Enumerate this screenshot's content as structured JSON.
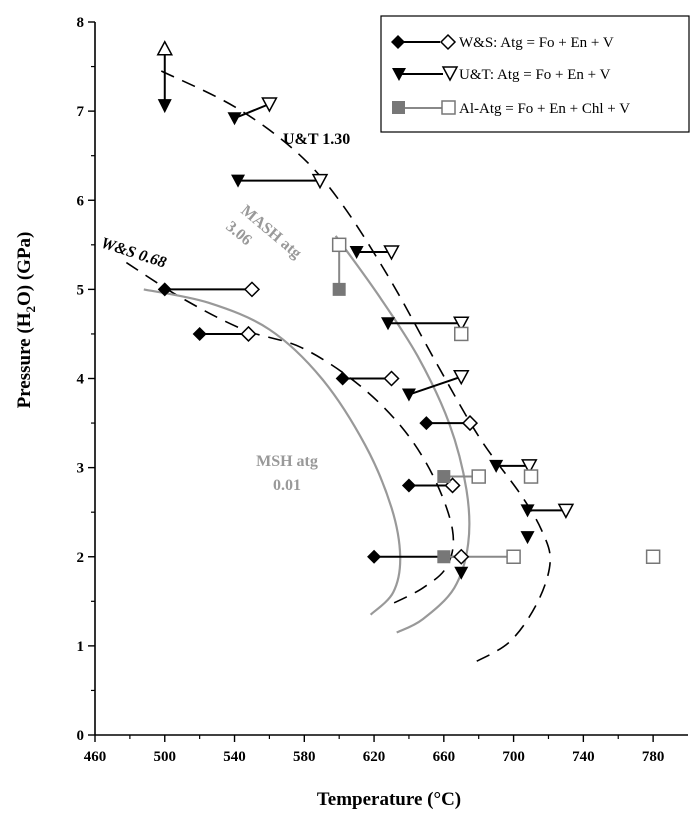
{
  "chart_data": {
    "type": "scatter",
    "xlabel": "Temperature (°C)",
    "ylabel": "Pressure (H2O)  (GPa)",
    "xlim": [
      460,
      800
    ],
    "ylim": [
      0,
      8
    ],
    "x_ticks": [
      "460",
      "500",
      "540",
      "580",
      "620",
      "660",
      "700",
      "740",
      "780"
    ],
    "y_ticks": [
      "0",
      "1",
      "2",
      "3",
      "4",
      "5",
      "6",
      "7",
      "8"
    ],
    "grid": false,
    "legend_position": "top-right",
    "series": [
      {
        "name": "W&S: Atg = Fo + En + V",
        "marker_filled": "diamond",
        "marker_open": "diamond-open",
        "color": "#000000",
        "brackets": [
          {
            "filled": [
              500,
              5.0
            ],
            "open": [
              550,
              5.0
            ]
          },
          {
            "filled": [
              520,
              4.5
            ],
            "open": [
              548,
              4.5
            ]
          },
          {
            "filled": [
              602,
              4.0
            ],
            "open": [
              630,
              4.0
            ]
          },
          {
            "filled": [
              650,
              3.5
            ],
            "open": [
              675,
              3.5
            ]
          },
          {
            "filled": [
              640,
              2.8
            ],
            "open": [
              665,
              2.8
            ]
          },
          {
            "filled": [
              620,
              2.0
            ],
            "open": [
              670,
              2.0
            ]
          }
        ]
      },
      {
        "name": "U&T: Atg = Fo + En + V",
        "marker_filled": "triangle-down",
        "marker_open": "triangle-down-open",
        "color": "#000000",
        "brackets": [
          {
            "filled": [
              540,
              6.92
            ],
            "open": [
              560,
              7.08
            ]
          },
          {
            "filled": [
              542,
              6.22
            ],
            "open": [
              589,
              6.22
            ]
          },
          {
            "filled": [
              610,
              5.42
            ],
            "open": [
              630,
              5.42
            ]
          },
          {
            "filled": [
              628,
              4.62
            ],
            "open": [
              670,
              4.62
            ]
          },
          {
            "filled": [
              640,
              3.82
            ],
            "open": [
              670,
              4.02
            ]
          },
          {
            "filled": [
              690,
              3.02
            ],
            "open": [
              709,
              3.02
            ]
          },
          {
            "filled": [
              708,
              2.52
            ],
            "open": [
              730,
              2.52
            ]
          },
          {
            "filled": [
              708,
              2.22
            ]
          },
          {
            "filled": [
              670,
              1.82
            ]
          }
        ]
      },
      {
        "name": "Al-Atg = Fo + En + Chl + V",
        "marker_filled": "square",
        "marker_open": "square-open",
        "color": "#777777",
        "brackets": [
          {
            "filled": [
              600,
              5.0
            ],
            "open": [
              600,
              5.5
            ]
          },
          {
            "filled": [
              660,
              2.9
            ],
            "open": [
              680,
              2.9
            ]
          },
          {
            "filled": [
              660,
              2.0
            ],
            "open": [
              700,
              2.0
            ]
          },
          {
            "open": [
              670,
              4.5
            ]
          },
          {
            "open": [
              710,
              2.9
            ]
          },
          {
            "open": [
              780,
              2.0
            ]
          }
        ]
      }
    ],
    "arrow_marker": {
      "open_triangle_up": [
        500,
        7.7
      ],
      "arrow_down_to": [
        500,
        7.0
      ]
    },
    "curves": [
      {
        "label": "U&T 1.30",
        "style": "dashed",
        "color": "#000000"
      },
      {
        "label": "W&S 0.68",
        "style": "dashed",
        "color": "#000000"
      },
      {
        "label": "MASH atg 3.06",
        "style": "solid",
        "color": "#999999"
      },
      {
        "label": "MSH atg 0.01",
        "style": "solid",
        "color": "#999999"
      }
    ],
    "annotations": [
      "U&T 1.30",
      "W&S 0.68",
      "MASH atg",
      "3.06",
      "MSH atg",
      "0.01"
    ]
  }
}
